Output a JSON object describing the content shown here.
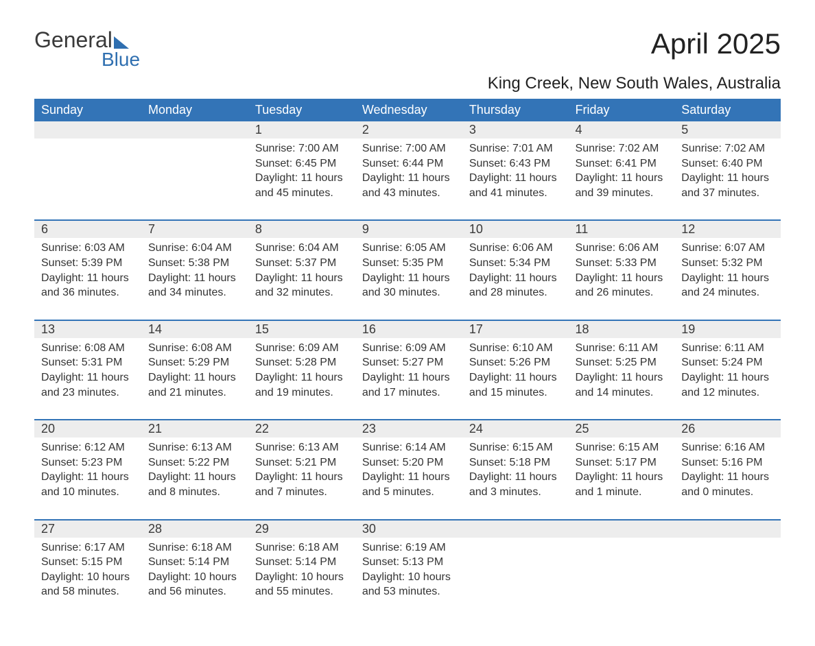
{
  "logo": {
    "text1": "General",
    "text2": "Blue"
  },
  "title": "April 2025",
  "location": "King Creek, New South Wales, Australia",
  "colors": {
    "header_bg": "#3374b7",
    "header_text": "#ffffff",
    "daynum_bg": "#ededed",
    "week_border": "#3374b7",
    "body_text": "#333333",
    "logo_blue": "#2f6fb0"
  },
  "weekdays": [
    "Sunday",
    "Monday",
    "Tuesday",
    "Wednesday",
    "Thursday",
    "Friday",
    "Saturday"
  ],
  "weeks": [
    {
      "days": [
        null,
        null,
        {
          "n": "1",
          "sr": "Sunrise: 7:00 AM",
          "ss": "Sunset: 6:45 PM",
          "d1": "Daylight: 11 hours",
          "d2": "and 45 minutes."
        },
        {
          "n": "2",
          "sr": "Sunrise: 7:00 AM",
          "ss": "Sunset: 6:44 PM",
          "d1": "Daylight: 11 hours",
          "d2": "and 43 minutes."
        },
        {
          "n": "3",
          "sr": "Sunrise: 7:01 AM",
          "ss": "Sunset: 6:43 PM",
          "d1": "Daylight: 11 hours",
          "d2": "and 41 minutes."
        },
        {
          "n": "4",
          "sr": "Sunrise: 7:02 AM",
          "ss": "Sunset: 6:41 PM",
          "d1": "Daylight: 11 hours",
          "d2": "and 39 minutes."
        },
        {
          "n": "5",
          "sr": "Sunrise: 7:02 AM",
          "ss": "Sunset: 6:40 PM",
          "d1": "Daylight: 11 hours",
          "d2": "and 37 minutes."
        }
      ]
    },
    {
      "days": [
        {
          "n": "6",
          "sr": "Sunrise: 6:03 AM",
          "ss": "Sunset: 5:39 PM",
          "d1": "Daylight: 11 hours",
          "d2": "and 36 minutes."
        },
        {
          "n": "7",
          "sr": "Sunrise: 6:04 AM",
          "ss": "Sunset: 5:38 PM",
          "d1": "Daylight: 11 hours",
          "d2": "and 34 minutes."
        },
        {
          "n": "8",
          "sr": "Sunrise: 6:04 AM",
          "ss": "Sunset: 5:37 PM",
          "d1": "Daylight: 11 hours",
          "d2": "and 32 minutes."
        },
        {
          "n": "9",
          "sr": "Sunrise: 6:05 AM",
          "ss": "Sunset: 5:35 PM",
          "d1": "Daylight: 11 hours",
          "d2": "and 30 minutes."
        },
        {
          "n": "10",
          "sr": "Sunrise: 6:06 AM",
          "ss": "Sunset: 5:34 PM",
          "d1": "Daylight: 11 hours",
          "d2": "and 28 minutes."
        },
        {
          "n": "11",
          "sr": "Sunrise: 6:06 AM",
          "ss": "Sunset: 5:33 PM",
          "d1": "Daylight: 11 hours",
          "d2": "and 26 minutes."
        },
        {
          "n": "12",
          "sr": "Sunrise: 6:07 AM",
          "ss": "Sunset: 5:32 PM",
          "d1": "Daylight: 11 hours",
          "d2": "and 24 minutes."
        }
      ]
    },
    {
      "days": [
        {
          "n": "13",
          "sr": "Sunrise: 6:08 AM",
          "ss": "Sunset: 5:31 PM",
          "d1": "Daylight: 11 hours",
          "d2": "and 23 minutes."
        },
        {
          "n": "14",
          "sr": "Sunrise: 6:08 AM",
          "ss": "Sunset: 5:29 PM",
          "d1": "Daylight: 11 hours",
          "d2": "and 21 minutes."
        },
        {
          "n": "15",
          "sr": "Sunrise: 6:09 AM",
          "ss": "Sunset: 5:28 PM",
          "d1": "Daylight: 11 hours",
          "d2": "and 19 minutes."
        },
        {
          "n": "16",
          "sr": "Sunrise: 6:09 AM",
          "ss": "Sunset: 5:27 PM",
          "d1": "Daylight: 11 hours",
          "d2": "and 17 minutes."
        },
        {
          "n": "17",
          "sr": "Sunrise: 6:10 AM",
          "ss": "Sunset: 5:26 PM",
          "d1": "Daylight: 11 hours",
          "d2": "and 15 minutes."
        },
        {
          "n": "18",
          "sr": "Sunrise: 6:11 AM",
          "ss": "Sunset: 5:25 PM",
          "d1": "Daylight: 11 hours",
          "d2": "and 14 minutes."
        },
        {
          "n": "19",
          "sr": "Sunrise: 6:11 AM",
          "ss": "Sunset: 5:24 PM",
          "d1": "Daylight: 11 hours",
          "d2": "and 12 minutes."
        }
      ]
    },
    {
      "days": [
        {
          "n": "20",
          "sr": "Sunrise: 6:12 AM",
          "ss": "Sunset: 5:23 PM",
          "d1": "Daylight: 11 hours",
          "d2": "and 10 minutes."
        },
        {
          "n": "21",
          "sr": "Sunrise: 6:13 AM",
          "ss": "Sunset: 5:22 PM",
          "d1": "Daylight: 11 hours",
          "d2": "and 8 minutes."
        },
        {
          "n": "22",
          "sr": "Sunrise: 6:13 AM",
          "ss": "Sunset: 5:21 PM",
          "d1": "Daylight: 11 hours",
          "d2": "and 7 minutes."
        },
        {
          "n": "23",
          "sr": "Sunrise: 6:14 AM",
          "ss": "Sunset: 5:20 PM",
          "d1": "Daylight: 11 hours",
          "d2": "and 5 minutes."
        },
        {
          "n": "24",
          "sr": "Sunrise: 6:15 AM",
          "ss": "Sunset: 5:18 PM",
          "d1": "Daylight: 11 hours",
          "d2": "and 3 minutes."
        },
        {
          "n": "25",
          "sr": "Sunrise: 6:15 AM",
          "ss": "Sunset: 5:17 PM",
          "d1": "Daylight: 11 hours",
          "d2": "and 1 minute."
        },
        {
          "n": "26",
          "sr": "Sunrise: 6:16 AM",
          "ss": "Sunset: 5:16 PM",
          "d1": "Daylight: 11 hours",
          "d2": "and 0 minutes."
        }
      ]
    },
    {
      "days": [
        {
          "n": "27",
          "sr": "Sunrise: 6:17 AM",
          "ss": "Sunset: 5:15 PM",
          "d1": "Daylight: 10 hours",
          "d2": "and 58 minutes."
        },
        {
          "n": "28",
          "sr": "Sunrise: 6:18 AM",
          "ss": "Sunset: 5:14 PM",
          "d1": "Daylight: 10 hours",
          "d2": "and 56 minutes."
        },
        {
          "n": "29",
          "sr": "Sunrise: 6:18 AM",
          "ss": "Sunset: 5:14 PM",
          "d1": "Daylight: 10 hours",
          "d2": "and 55 minutes."
        },
        {
          "n": "30",
          "sr": "Sunrise: 6:19 AM",
          "ss": "Sunset: 5:13 PM",
          "d1": "Daylight: 10 hours",
          "d2": "and 53 minutes."
        },
        null,
        null,
        null
      ]
    }
  ]
}
